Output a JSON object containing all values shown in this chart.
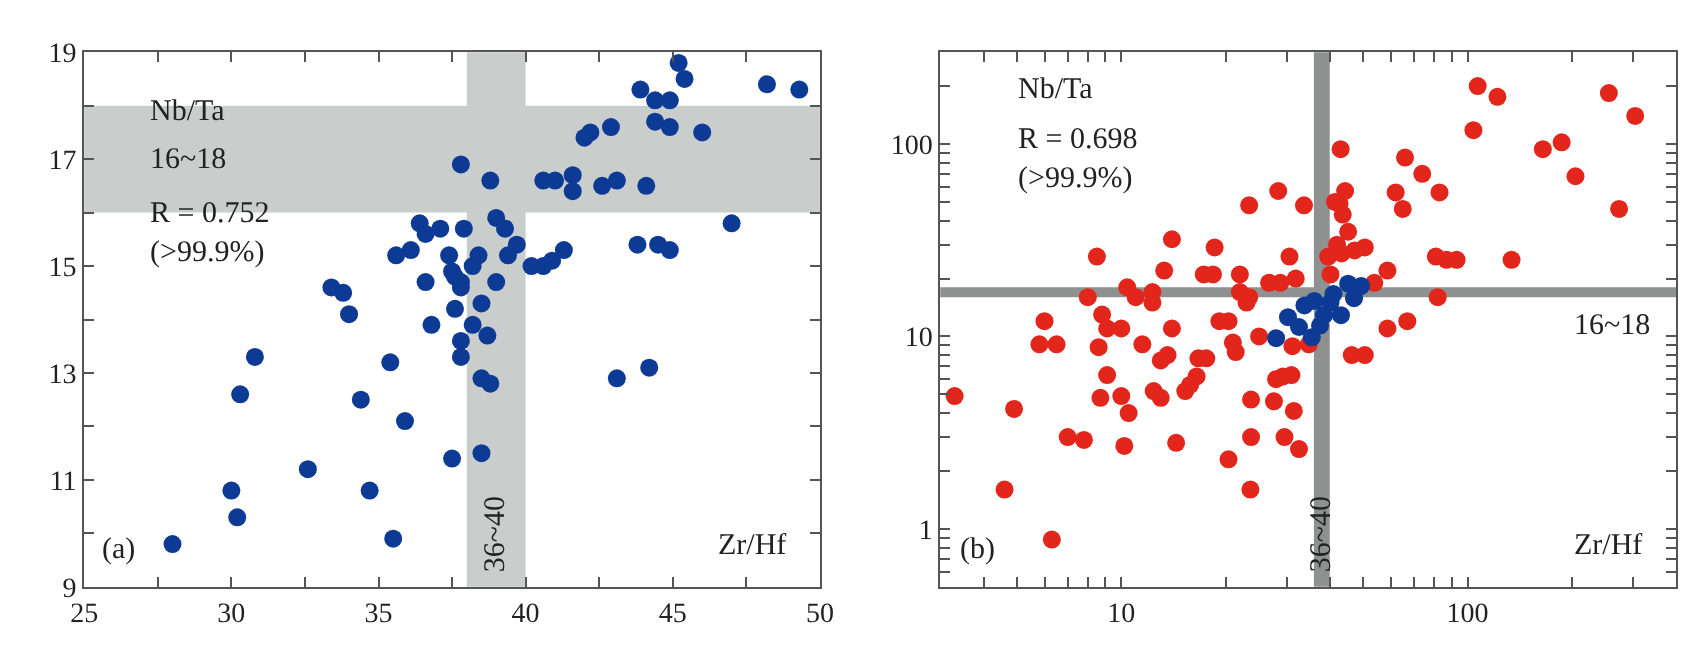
{
  "chart_data": [
    {
      "type": "scatter",
      "marker": "circle",
      "grid": false,
      "xlabel": "Zr/Hf",
      "ylabel": "Nb/Ta",
      "xlim": [
        25,
        50
      ],
      "ylim": [
        9,
        19
      ],
      "xticks": [
        25,
        {
          "value": 27.5,
          "label": null
        },
        30,
        {
          "value": 32.5,
          "label": null
        },
        35,
        {
          "value": 37.5,
          "label": null
        },
        40,
        {
          "value": 42.5,
          "label": null
        },
        45,
        {
          "value": 47.5,
          "label": null
        },
        50
      ],
      "yticks": [
        9,
        {
          "value": 10,
          "label": null
        },
        11,
        {
          "value": 12,
          "label": null
        },
        13,
        {
          "value": 14,
          "label": null
        },
        15,
        {
          "value": 16,
          "label": null
        },
        17,
        {
          "value": 18,
          "label": null
        },
        19
      ],
      "bands": [
        {
          "axis": "y",
          "from": 16,
          "to": 18,
          "label": "16~18",
          "color": "#c9cdcc"
        },
        {
          "axis": "x",
          "from": 38,
          "to": 40,
          "label": "36~40",
          "color": "#c9cdcc"
        }
      ],
      "annotations": [
        "R = 0.752\n(>99.9%)",
        "(a)"
      ],
      "series": [
        {
          "color": "#0d3a94",
          "x": [
            28.0,
            30.0,
            30.2,
            30.3,
            30.8,
            32.6,
            33.4,
            33.8,
            34.0,
            34.4,
            34.7,
            35.4,
            35.5,
            35.9,
            35.6,
            36.1,
            36.4,
            36.6,
            36.6,
            36.8,
            37.1,
            37.8,
            37.9,
            37.4,
            37.5,
            37.6,
            37.8,
            37.8,
            38.2,
            38.4,
            37.6,
            38.5,
            38.2,
            38.7,
            37.8,
            37.8,
            38.5,
            38.8,
            37.5,
            38.5,
            38.8,
            39.0,
            39.0,
            39.3,
            39.7,
            39.4,
            40.2,
            40.6,
            40.9,
            41.3,
            40.6,
            41.0,
            41.6,
            41.6,
            42.0,
            42.2,
            42.6,
            43.1,
            42.9,
            43.1,
            43.8,
            44.2,
            43.9,
            44.4,
            44.9,
            44.4,
            44.9,
            44.1,
            44.5,
            44.9,
            45.2,
            45.4,
            46.0,
            47.0,
            48.2,
            49.3
          ],
          "values": [
            9.8,
            10.8,
            10.3,
            12.6,
            13.3,
            11.2,
            14.6,
            14.5,
            14.1,
            12.5,
            10.8,
            13.2,
            9.9,
            12.1,
            15.2,
            15.3,
            15.8,
            15.6,
            14.7,
            13.9,
            15.7,
            16.9,
            15.7,
            15.2,
            14.9,
            14.8,
            14.7,
            14.6,
            15.0,
            15.2,
            14.2,
            14.3,
            13.9,
            13.7,
            13.6,
            13.3,
            12.9,
            12.8,
            11.4,
            11.5,
            16.6,
            14.7,
            15.9,
            15.7,
            15.4,
            15.2,
            15.0,
            15.0,
            15.1,
            15.3,
            16.6,
            16.6,
            16.7,
            16.4,
            17.4,
            17.5,
            16.5,
            16.6,
            17.6,
            12.9,
            15.4,
            13.1,
            18.3,
            18.1,
            18.1,
            17.7,
            17.6,
            16.5,
            15.4,
            15.3,
            18.8,
            18.5,
            17.5,
            15.8,
            18.4,
            18.3
          ]
        }
      ]
    },
    {
      "type": "scatter",
      "marker": "circle",
      "grid": false,
      "log": "xy",
      "xlabel": "Zr/Hf",
      "ylabel": "Nb/Ta",
      "xlim": [
        3,
        400
      ],
      "ylim": [
        0.5,
        300
      ],
      "xticks": [
        {
          "value": 4,
          "label": null
        },
        {
          "value": 5,
          "label": null
        },
        {
          "value": 6,
          "label": null
        },
        {
          "value": 7,
          "label": null
        },
        {
          "value": 8,
          "label": null
        },
        {
          "value": 9,
          "label": null
        },
        10,
        {
          "value": 20,
          "label": null
        },
        {
          "value": 30,
          "label": null
        },
        {
          "value": 40,
          "label": null
        },
        {
          "value": 50,
          "label": null
        },
        {
          "value": 60,
          "label": null
        },
        {
          "value": 70,
          "label": null
        },
        {
          "value": 80,
          "label": null
        },
        {
          "value": 90,
          "label": null
        },
        100,
        {
          "value": 200,
          "label": null
        },
        {
          "value": 300,
          "label": null
        }
      ],
      "yticks": [
        {
          "value": 0.6,
          "label": null
        },
        {
          "value": 0.7,
          "label": null
        },
        {
          "value": 0.8,
          "label": null
        },
        {
          "value": 0.9,
          "label": null
        },
        1,
        {
          "value": 2,
          "label": null
        },
        {
          "value": 3,
          "label": null
        },
        {
          "value": 4,
          "label": null
        },
        {
          "value": 5,
          "label": null
        },
        {
          "value": 6,
          "label": null
        },
        {
          "value": 7,
          "label": null
        },
        {
          "value": 8,
          "label": null
        },
        {
          "value": 9,
          "label": null
        },
        10,
        {
          "value": 20,
          "label": null
        },
        {
          "value": 30,
          "label": null
        },
        {
          "value": 40,
          "label": null
        },
        {
          "value": 50,
          "label": null
        },
        {
          "value": 60,
          "label": null
        },
        {
          "value": 70,
          "label": null
        },
        {
          "value": 80,
          "label": null
        },
        {
          "value": 90,
          "label": null
        },
        100,
        {
          "value": 200,
          "label": null
        }
      ],
      "bands": [
        {
          "axis": "y",
          "from": 16,
          "to": 18,
          "label": "16~18",
          "color": "#8e918f"
        },
        {
          "axis": "x",
          "from": 36,
          "to": 40,
          "label": "36~40",
          "color": "#8e918f"
        }
      ],
      "annotations": [
        "R = 0.698\n(>99.9%)",
        "(b)"
      ],
      "series": [
        {
          "color": "#e2261b",
          "x": [
            3.3,
            4.6,
            4.9,
            6.0,
            5.8,
            6.5,
            6.3,
            7.0,
            7.8,
            8.0,
            8.5,
            8.8,
            8.6,
            9.1,
            10,
            9.1,
            8.7,
            10,
            10.5,
            10.2,
            10.4,
            11,
            11.5,
            12.3,
            12.3,
            12.4,
            13,
            13,
            13.6,
            14,
            13.3,
            14,
            14.4,
            15.3,
            15.8,
            16.5,
            16.7,
            17.6,
            17.3,
            18.4,
            18.6,
            19.2,
            20.4,
            20.4,
            21,
            21.4,
            22,
            22,
            23,
            23.4,
            23.4,
            23.7,
            23.7,
            23.6,
            25,
            26.7,
            28.4,
            33.7,
            28.8,
            31.9,
            30.6,
            28,
            29.3,
            31,
            27.6,
            31.5,
            29.6,
            32.6,
            31.2,
            34.8,
            39.6,
            43,
            41.4,
            42.7,
            44.3,
            43.6,
            45.2,
            42,
            47.2,
            50.5,
            43.3,
            40.2,
            46.3,
            50.5,
            53.8,
            58.7,
            58.7,
            67,
            62,
            65,
            66,
            74,
            83,
            81,
            87,
            93,
            82,
            107,
            122,
            104,
            134,
            165,
            187,
            205,
            256,
            305,
            274
          ],
          "values": [
            4.9,
            1.6,
            4.2,
            12,
            9.1,
            9.1,
            0.88,
            3.0,
            2.9,
            16,
            26,
            13,
            8.8,
            11,
            11,
            6.3,
            4.8,
            4.9,
            4.0,
            2.7,
            18,
            16,
            9.1,
            17,
            15,
            5.2,
            4.8,
            7.5,
            8.0,
            32,
            22,
            11,
            2.8,
            5.2,
            5.6,
            6.2,
            7.7,
            7.7,
            21,
            21,
            29,
            12,
            12,
            2.3,
            9.3,
            8.3,
            21,
            17,
            15,
            16,
            48,
            4.7,
            3.0,
            1.6,
            10,
            19,
            57,
            48,
            19,
            20,
            26,
            6.0,
            6.2,
            6.3,
            4.6,
            4.1,
            3.0,
            2.6,
            8.9,
            9.1,
            26,
            94,
            50,
            49,
            57,
            43,
            35,
            30,
            28,
            29,
            27,
            21,
            8.0,
            8.0,
            19,
            22,
            11,
            12,
            56,
            46,
            85,
            70,
            56,
            26,
            25,
            25,
            16,
            200,
            176,
            118,
            25,
            94,
            102,
            68,
            184,
            140,
            46
          ]
        },
        {
          "color": "#0d3a94",
          "x": [
            28.0,
            30.3,
            32.6,
            33.8,
            35.5,
            36.1,
            37.5,
            38.5,
            40.2,
            41.0,
            43.1,
            44.4,
            45.2,
            47.0,
            49.3
          ],
          "values": [
            9.8,
            12.6,
            11.2,
            14.5,
            9.9,
            15.3,
            11.4,
            12.9,
            15.0,
            16.6,
            12.9,
            null,
            18.8,
            15.8,
            18.3
          ]
        }
      ]
    }
  ]
}
